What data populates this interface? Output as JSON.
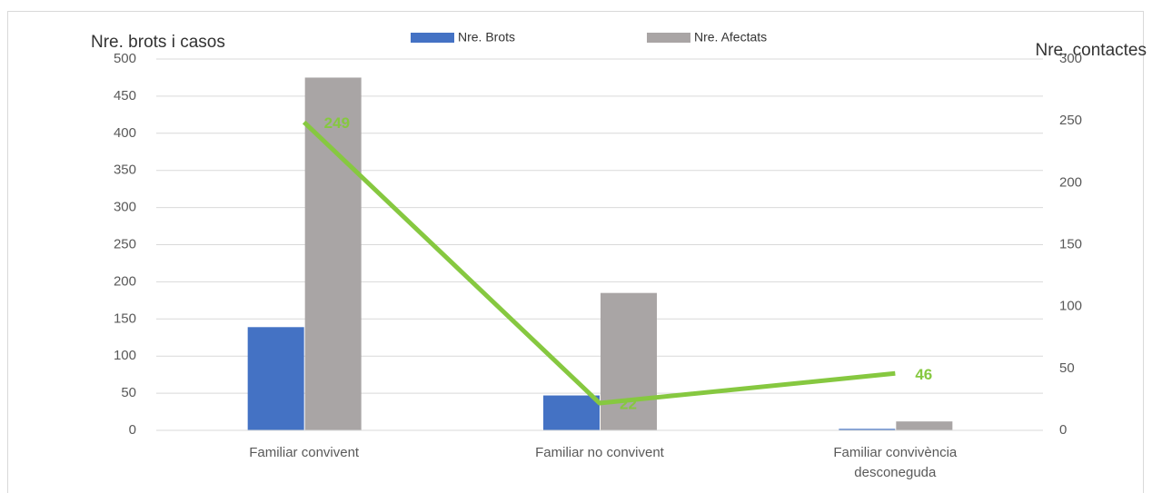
{
  "chart_data": {
    "type": "bar",
    "categories": [
      "Familiar convivent",
      "Familiar no convivent",
      "Familiar convivència desconeguda"
    ],
    "series": [
      {
        "name": "Nre. Brots",
        "color": "#4472c4",
        "values": [
          139,
          47,
          2
        ]
      },
      {
        "name": "Nre. Afectats",
        "color": "#a9a5a5",
        "values": [
          475,
          185,
          12
        ]
      },
      {
        "type": "line",
        "axis": "y2",
        "color": "#86c840",
        "values": [
          249,
          22,
          46
        ]
      }
    ],
    "y_label": "Nre. brots i casos",
    "y2_label": "Nre. contactes",
    "ylim": [
      0,
      500
    ],
    "yticks": [
      0,
      50,
      100,
      150,
      200,
      250,
      300,
      350,
      400,
      450,
      500
    ],
    "y2lim": [
      0,
      300
    ],
    "y2ticks": [
      0,
      50,
      100,
      150,
      200,
      250,
      300
    ],
    "grid": true,
    "legend": "top"
  }
}
